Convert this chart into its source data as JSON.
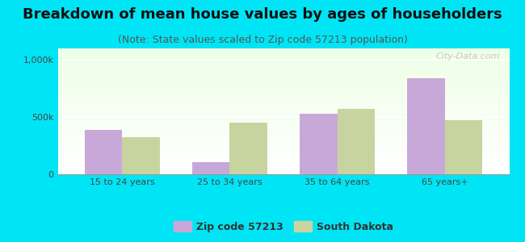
{
  "title": "Breakdown of mean house values by ages of householders",
  "subtitle": "(Note: State values scaled to Zip code 57213 population)",
  "categories": [
    "15 to 24 years",
    "25 to 34 years",
    "35 to 64 years",
    "65 years+"
  ],
  "zip_values": [
    390000,
    105000,
    530000,
    840000
  ],
  "state_values": [
    325000,
    450000,
    570000,
    475000
  ],
  "zip_color": "#c8a8d8",
  "state_color": "#c8d4a0",
  "background_color": "#00e5f5",
  "ylim": [
    0,
    1100000
  ],
  "yticks": [
    0,
    500000,
    1000000
  ],
  "ytick_labels": [
    "0",
    "500k",
    "1,000k"
  ],
  "legend_zip": "Zip code 57213",
  "legend_state": "South Dakota",
  "title_fontsize": 13,
  "subtitle_fontsize": 9,
  "watermark": "City-Data.com",
  "bar_width": 0.35
}
